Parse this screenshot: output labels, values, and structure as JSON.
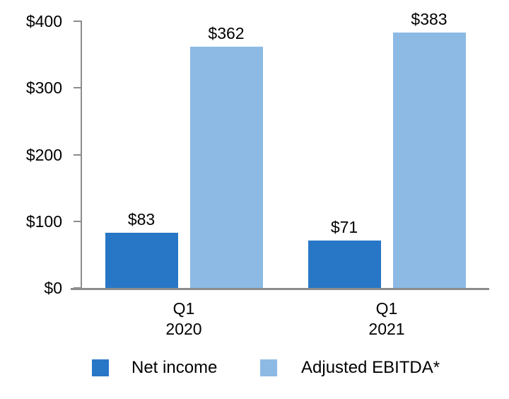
{
  "chart_data": {
    "type": "bar",
    "title": "",
    "xlabel": "",
    "ylabel": "",
    "categories": [
      [
        "Q1",
        "2020"
      ],
      [
        "Q1",
        "2021"
      ]
    ],
    "series": [
      {
        "name": "Net income",
        "color": "#2877C6",
        "values": [
          83,
          71
        ],
        "labels": [
          "$83",
          "$71"
        ]
      },
      {
        "name": "Adjusted EBITDA*",
        "color": "#8CBAE4",
        "values": [
          362,
          383
        ],
        "labels": [
          "$362",
          "$383"
        ]
      }
    ],
    "ylim": [
      0,
      400
    ],
    "yticks": [
      {
        "value": 0,
        "label": "$0"
      },
      {
        "value": 100,
        "label": "$100"
      },
      {
        "value": 200,
        "label": "$200"
      },
      {
        "value": 300,
        "label": "$300"
      },
      {
        "value": 400,
        "label": "$400"
      }
    ],
    "grid": false,
    "legend_position": "bottom",
    "axis_color": "#8C8C8C",
    "text_color": "#000000"
  }
}
